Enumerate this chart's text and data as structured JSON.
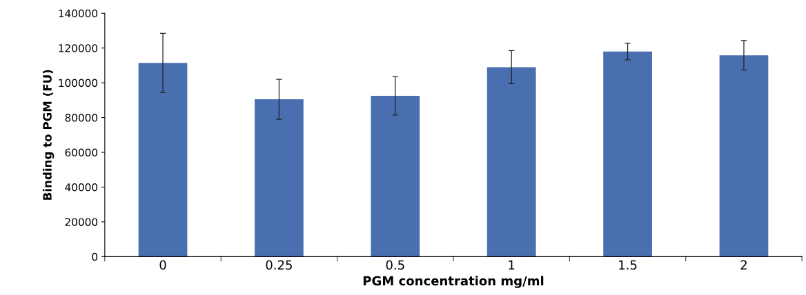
{
  "chart_data": {
    "type": "bar",
    "xlabel": "PGM concentration mg/ml",
    "ylabel": "Binding to PGM (FU)",
    "categories": [
      "0",
      "0.25",
      "0.5",
      "1",
      "1.5",
      "2"
    ],
    "values": [
      111500,
      90500,
      92500,
      109000,
      118000,
      115800
    ],
    "errors": [
      17000,
      11500,
      11000,
      9500,
      4800,
      8500
    ],
    "color": "#4a6fb0",
    "ylim": [
      0,
      140000
    ],
    "yticks": [
      0,
      20000,
      40000,
      60000,
      80000,
      100000,
      120000,
      140000
    ],
    "grid": false
  }
}
